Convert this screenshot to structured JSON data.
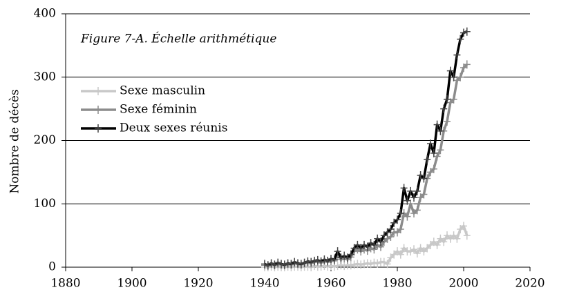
{
  "chart_data": {
    "type": "line",
    "title": "Figure 7-A. Échelle arithmétique",
    "y_label": "Nombre de décès",
    "x": [
      1940,
      1941,
      1942,
      1943,
      1944,
      1945,
      1946,
      1947,
      1948,
      1949,
      1950,
      1951,
      1952,
      1953,
      1954,
      1955,
      1956,
      1957,
      1958,
      1959,
      1960,
      1961,
      1962,
      1963,
      1964,
      1965,
      1966,
      1967,
      1968,
      1969,
      1970,
      1971,
      1972,
      1973,
      1974,
      1975,
      1976,
      1977,
      1978,
      1979,
      1980,
      1981,
      1982,
      1983,
      1984,
      1985,
      1986,
      1987,
      1988,
      1989,
      1990,
      1991,
      1992,
      1993,
      1994,
      1995,
      1996,
      1997,
      1998,
      1999,
      2000,
      2001
    ],
    "series": [
      {
        "name": "Sexe masculin",
        "color": "#c8c8c8",
        "values": [
          0,
          0,
          1,
          0,
          1,
          0,
          0,
          1,
          0,
          1,
          1,
          0,
          1,
          1,
          0,
          2,
          1,
          1,
          2,
          1,
          2,
          1,
          2,
          3,
          2,
          3,
          3,
          4,
          5,
          4,
          5,
          6,
          5,
          7,
          6,
          8,
          8,
          5,
          15,
          20,
          25,
          20,
          30,
          25,
          25,
          28,
          22,
          30,
          25,
          30,
          35,
          40,
          35,
          45,
          40,
          50,
          45,
          50,
          45,
          60,
          65,
          50
        ]
      },
      {
        "name": "Sexe féminin",
        "color": "#8c8c8c",
        "values": [
          3,
          2,
          5,
          3,
          5,
          4,
          3,
          5,
          4,
          6,
          5,
          4,
          6,
          7,
          6,
          8,
          9,
          7,
          10,
          8,
          10,
          10,
          20,
          12,
          14,
          12,
          16,
          25,
          28,
          25,
          28,
          26,
          30,
          28,
          35,
          32,
          40,
          45,
          48,
          55,
          55,
          60,
          85,
          80,
          100,
          85,
          90,
          110,
          115,
          140,
          150,
          155,
          175,
          185,
          215,
          230,
          260,
          265,
          295,
          300,
          315,
          320
        ]
      },
      {
        "name": "Deux sexes réunis",
        "color": "#000000",
        "values": [
          5,
          3,
          6,
          4,
          7,
          5,
          4,
          6,
          5,
          8,
          6,
          5,
          7,
          9,
          8,
          10,
          11,
          9,
          12,
          10,
          13,
          12,
          25,
          15,
          18,
          15,
          20,
          30,
          35,
          30,
          35,
          32,
          38,
          35,
          45,
          40,
          50,
          55,
          60,
          70,
          75,
          85,
          125,
          105,
          120,
          110,
          120,
          145,
          140,
          170,
          195,
          180,
          225,
          215,
          250,
          265,
          310,
          300,
          335,
          360,
          370,
          372
        ]
      }
    ],
    "xlim": [
      1880,
      2020
    ],
    "xticks": [
      1880,
      1900,
      1920,
      1940,
      1960,
      1980,
      2000,
      2020
    ],
    "ylim": [
      0,
      400
    ],
    "yticks": [
      0,
      100,
      200,
      300,
      400
    ],
    "grid": true,
    "legend": "upper-left"
  }
}
